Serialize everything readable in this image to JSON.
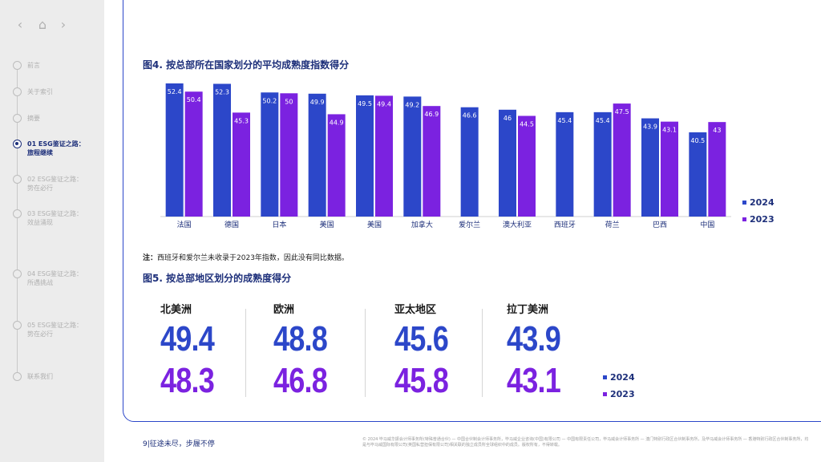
{
  "sidebar": {
    "nav": {
      "back": "‹",
      "home": "⌂",
      "forward": "›"
    },
    "items": [
      {
        "label": "前言",
        "active": false
      },
      {
        "label": "关于索引",
        "active": false
      },
      {
        "label": "摘要",
        "active": false
      },
      {
        "label": "01 ESG鉴证之路：\n旅程继续",
        "active": true
      },
      {
        "label": "02 ESG鉴证之路：\n势在必行",
        "active": false
      },
      {
        "label": "03 ESG鉴证之路：\n效益涌现",
        "active": false
      },
      {
        "label": "04 ESG鉴证之路：\n所遇挑战",
        "active": false
      },
      {
        "label": "05 ESG鉴证之路：\n势在必行",
        "active": false
      },
      {
        "label": "联系我们",
        "active": false
      }
    ]
  },
  "fig4": {
    "title": "图4. 按总部所在国家划分的平均成熟度指数得分"
  },
  "chart_data": {
    "type": "bar",
    "categories": [
      "法国",
      "德国",
      "日本",
      "美国",
      "美国",
      "加拿大",
      "爱尔兰",
      "澳大利亚",
      "西班牙",
      "荷兰",
      "巴西",
      "中国"
    ],
    "series": [
      {
        "name": "2024",
        "values": [
          52.4,
          52.3,
          50.2,
          49.9,
          49.5,
          49.2,
          46.6,
          46.0,
          45.4,
          45.4,
          43.9,
          40.5
        ],
        "color": "#2c47c9"
      },
      {
        "name": "2023",
        "values": [
          50.4,
          45.3,
          50.0,
          44.9,
          49.4,
          46.9,
          null,
          44.5,
          null,
          47.5,
          43.1,
          43.0
        ],
        "color": "#7b22e0"
      }
    ],
    "ylim": [
      0,
      53
    ]
  },
  "note": {
    "prefix": "注：",
    "text": "西班牙和爱尔兰未收录于2023年指数，因此没有同比数据。"
  },
  "fig5": {
    "title": "图5. 按总部地区划分的成熟度得分",
    "regions": [
      {
        "name": "北美洲",
        "v2024": "49.4",
        "v2023": "48.3"
      },
      {
        "name": "欧洲",
        "v2024": "48.8",
        "v2023": "46.8"
      },
      {
        "name": "亚太地区",
        "v2024": "45.6",
        "v2023": "45.8"
      },
      {
        "name": "拉丁美洲",
        "v2024": "43.9",
        "v2023": "43.1"
      }
    ],
    "legend": {
      "y2024": "2024",
      "y2023": "2023"
    }
  },
  "footer": {
    "slogan": "9|征途未尽，步履不停",
    "legal": "© 2024 毕马威华振会计师事务所(特殊普通合伙) — 中国合伙制会计师事务所，毕马威企业咨询(中国)有限公司 — 中国有限责任公司，毕马威会计师事务所 — 澳门特别行政区合伙制事务所，及毕马威会计师事务所 — 香港特别行政区合伙制事务所，均是与毕马威国际有限公司(英国私营担保有限公司)相关联的独立成员所全球组织中的成员。版权所有，不得转载。"
  },
  "colors": {
    "blue": "#2c47c9",
    "purple": "#7b22e0",
    "navy": "#1d2f7a"
  }
}
